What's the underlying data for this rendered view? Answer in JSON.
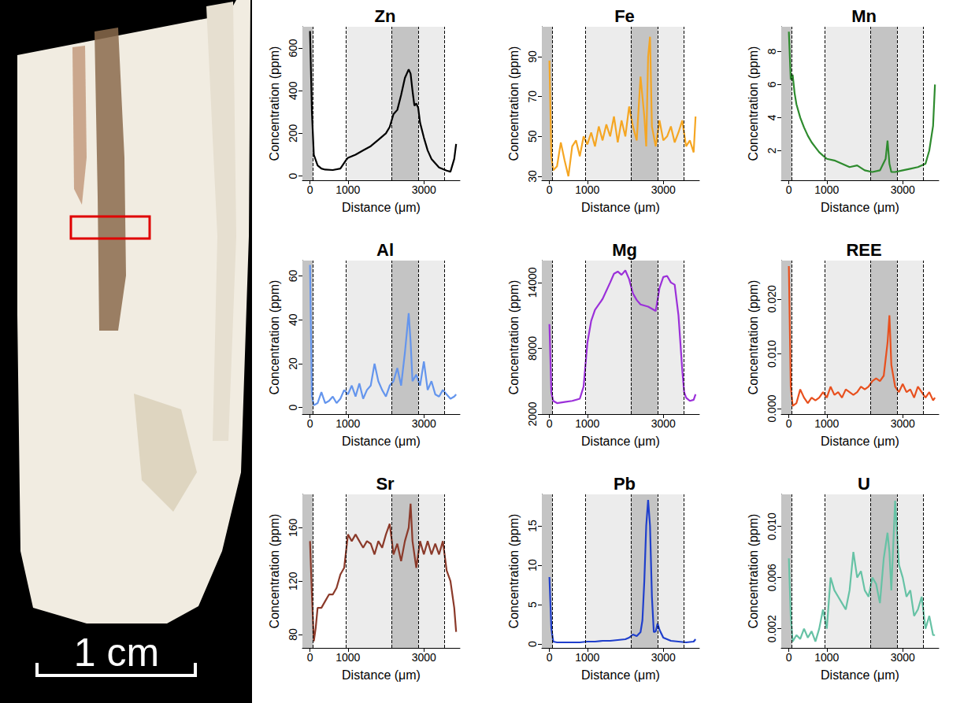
{
  "image": {
    "scale_label": "1 cm"
  },
  "chart_data": [
    {
      "type": "line",
      "title": "Zn",
      "color": "#000000",
      "x_label": "Distance (μm)",
      "y_label": "Concentration (ppm)",
      "grid": false,
      "xlim": [
        -200,
        3950
      ],
      "xticks": [
        0,
        1000,
        3000
      ],
      "ylim": [
        -20,
        700
      ],
      "yticks": [
        0,
        200,
        400,
        600
      ],
      "dark_bands": [
        [
          -200,
          80
        ],
        [
          2150,
          2850
        ]
      ],
      "light_bands": [
        [
          950,
          3550
        ]
      ],
      "dashed_lines": [
        80,
        950,
        2150,
        2850,
        3550
      ],
      "x": [
        0,
        50,
        100,
        200,
        300,
        400,
        600,
        800,
        950,
        1000,
        1200,
        1400,
        1600,
        1800,
        2000,
        2100,
        2200,
        2300,
        2400,
        2500,
        2600,
        2650,
        2700,
        2750,
        2800,
        2850,
        2900,
        3000,
        3100,
        3200,
        3400,
        3600,
        3700,
        3800,
        3850
      ],
      "values": [
        680,
        300,
        100,
        50,
        35,
        30,
        28,
        35,
        75,
        85,
        100,
        120,
        140,
        170,
        200,
        230,
        290,
        310,
        380,
        460,
        500,
        480,
        400,
        330,
        340,
        320,
        250,
        180,
        120,
        80,
        40,
        25,
        20,
        80,
        150
      ]
    },
    {
      "type": "line",
      "title": "Fe",
      "color": "#f5a623",
      "x_label": "Distance (μm)",
      "y_label": "Concentration (ppm)",
      "grid": false,
      "xlim": [
        -200,
        3950
      ],
      "xticks": [
        0,
        1000,
        3000
      ],
      "ylim": [
        28,
        105
      ],
      "yticks": [
        30,
        50,
        70,
        90
      ],
      "dark_bands": [
        [
          -200,
          80
        ],
        [
          2150,
          2850
        ]
      ],
      "light_bands": [
        [
          950,
          3550
        ]
      ],
      "dashed_lines": [
        80,
        950,
        2150,
        2850,
        3550
      ],
      "x": [
        0,
        50,
        100,
        200,
        300,
        400,
        500,
        600,
        700,
        800,
        900,
        1000,
        1100,
        1200,
        1300,
        1400,
        1500,
        1600,
        1700,
        1800,
        1900,
        2000,
        2100,
        2200,
        2300,
        2400,
        2500,
        2550,
        2600,
        2650,
        2700,
        2800,
        2900,
        3000,
        3100,
        3200,
        3300,
        3400,
        3500,
        3600,
        3700,
        3800,
        3850
      ],
      "values": [
        88,
        40,
        33,
        35,
        47,
        38,
        30,
        45,
        48,
        40,
        50,
        46,
        52,
        45,
        55,
        48,
        56,
        50,
        60,
        47,
        58,
        50,
        65,
        55,
        48,
        80,
        60,
        45,
        90,
        100,
        55,
        45,
        58,
        48,
        50,
        55,
        47,
        52,
        58,
        45,
        48,
        42,
        60
      ]
    },
    {
      "type": "line",
      "title": "Mn",
      "color": "#2e8b2e",
      "x_label": "Distance (μm)",
      "y_label": "Concentration (ppm)",
      "grid": false,
      "xlim": [
        -200,
        3950
      ],
      "xticks": [
        0,
        1000,
        3000
      ],
      "ylim": [
        0.2,
        9.5
      ],
      "yticks": [
        2,
        4,
        6,
        8
      ],
      "dark_bands": [
        [
          -200,
          80
        ],
        [
          2150,
          2850
        ]
      ],
      "light_bands": [
        [
          950,
          3550
        ]
      ],
      "dashed_lines": [
        80,
        950,
        2150,
        2850,
        3550
      ],
      "x": [
        0,
        50,
        100,
        150,
        200,
        300,
        400,
        500,
        600,
        700,
        800,
        900,
        1000,
        1200,
        1400,
        1600,
        1800,
        2000,
        2200,
        2400,
        2550,
        2600,
        2650,
        2700,
        2800,
        3000,
        3200,
        3400,
        3600,
        3700,
        3800,
        3850
      ],
      "values": [
        9.2,
        6.3,
        6.6,
        5.5,
        4.8,
        4.0,
        3.4,
        2.9,
        2.5,
        2.2,
        1.9,
        1.7,
        1.5,
        1.4,
        1.2,
        1.0,
        1.1,
        0.8,
        0.7,
        0.8,
        1.5,
        2.6,
        1.2,
        0.7,
        0.7,
        0.8,
        0.9,
        1.0,
        1.2,
        2.0,
        3.5,
        6.0
      ]
    },
    {
      "type": "line",
      "title": "Al",
      "color": "#6495ed",
      "x_label": "Distance (μm)",
      "y_label": "Concentration (ppm)",
      "grid": false,
      "xlim": [
        -200,
        3950
      ],
      "xticks": [
        0,
        1000,
        3000
      ],
      "ylim": [
        -3,
        67
      ],
      "yticks": [
        0,
        20,
        40,
        60
      ],
      "dark_bands": [
        [
          -200,
          80
        ],
        [
          2150,
          2850
        ]
      ],
      "light_bands": [
        [
          950,
          3550
        ]
      ],
      "dashed_lines": [
        80,
        950,
        2150,
        2850,
        3550
      ],
      "x": [
        0,
        50,
        100,
        200,
        300,
        400,
        500,
        600,
        700,
        800,
        900,
        1000,
        1100,
        1200,
        1300,
        1400,
        1500,
        1600,
        1700,
        1800,
        1900,
        2000,
        2100,
        2200,
        2300,
        2400,
        2500,
        2600,
        2650,
        2700,
        2800,
        2900,
        3000,
        3100,
        3200,
        3300,
        3400,
        3500,
        3600,
        3700,
        3800,
        3850
      ],
      "values": [
        65,
        5,
        1,
        2,
        7,
        2,
        3,
        5,
        2,
        4,
        8,
        6,
        10,
        5,
        11,
        4,
        8,
        10,
        20,
        12,
        8,
        5,
        10,
        12,
        18,
        10,
        25,
        43,
        30,
        12,
        15,
        10,
        21,
        8,
        12,
        6,
        5,
        8,
        6,
        4,
        5,
        6
      ]
    },
    {
      "type": "line",
      "title": "Mg",
      "color": "#9b30d9",
      "x_label": "Distance (μm)",
      "y_label": "Concentration (ppm)",
      "grid": false,
      "xlim": [
        -200,
        3950
      ],
      "xticks": [
        0,
        1000,
        3000
      ],
      "ylim": [
        2000,
        16000
      ],
      "yticks": [
        2000,
        8000,
        14000
      ],
      "dark_bands": [
        [
          -200,
          80
        ],
        [
          2150,
          2850
        ]
      ],
      "light_bands": [
        [
          950,
          3550
        ]
      ],
      "dashed_lines": [
        80,
        950,
        2150,
        2850,
        3550
      ],
      "x": [
        0,
        50,
        100,
        200,
        400,
        600,
        800,
        900,
        1000,
        1100,
        1200,
        1400,
        1600,
        1700,
        1800,
        1900,
        2000,
        2100,
        2200,
        2300,
        2400,
        2600,
        2800,
        2900,
        3000,
        3100,
        3200,
        3300,
        3400,
        3500,
        3550,
        3600,
        3700,
        3800,
        3850
      ],
      "values": [
        10200,
        4000,
        3200,
        3000,
        3100,
        3200,
        3400,
        4500,
        8500,
        10500,
        11500,
        12500,
        14000,
        14800,
        15000,
        14700,
        15100,
        14300,
        13000,
        12400,
        12000,
        11800,
        11400,
        13500,
        14500,
        14600,
        14000,
        13800,
        11000,
        6000,
        4000,
        3500,
        3200,
        3300,
        3800
      ]
    },
    {
      "type": "line",
      "title": "REE",
      "color": "#e8501e",
      "x_label": "Distance (μm)",
      "y_label": "Concentration (ppm)",
      "grid": false,
      "xlim": [
        -200,
        3950
      ],
      "xticks": [
        0,
        1000,
        3000
      ],
      "ylim": [
        -0.001,
        0.027
      ],
      "yticks": [
        {
          "value": 0,
          "label": "0.000"
        },
        {
          "value": 0.01,
          "label": "0.010"
        },
        {
          "value": 0.02,
          "label": "0.020"
        }
      ],
      "dark_bands": [
        [
          -200,
          80
        ],
        [
          2150,
          2850
        ]
      ],
      "light_bands": [
        [
          950,
          3550
        ]
      ],
      "dashed_lines": [
        80,
        950,
        2150,
        2850,
        3550
      ],
      "x": [
        0,
        50,
        100,
        200,
        300,
        400,
        500,
        600,
        700,
        800,
        900,
        1000,
        1100,
        1200,
        1300,
        1400,
        1500,
        1600,
        1700,
        1800,
        1900,
        2000,
        2100,
        2200,
        2300,
        2400,
        2500,
        2600,
        2650,
        2700,
        2800,
        2900,
        3000,
        3100,
        3200,
        3300,
        3400,
        3500,
        3600,
        3700,
        3800,
        3850
      ],
      "values": [
        0.026,
        0.004,
        0.0005,
        0.001,
        0.0035,
        0.002,
        0.001,
        0.002,
        0.0015,
        0.002,
        0.003,
        0.002,
        0.004,
        0.0025,
        0.003,
        0.002,
        0.0035,
        0.003,
        0.0025,
        0.003,
        0.004,
        0.0035,
        0.004,
        0.005,
        0.0055,
        0.005,
        0.006,
        0.012,
        0.017,
        0.008,
        0.004,
        0.003,
        0.0045,
        0.003,
        0.0035,
        0.002,
        0.004,
        0.003,
        0.002,
        0.003,
        0.0015,
        0.002
      ]
    },
    {
      "type": "line",
      "title": "Sr",
      "color": "#8b3a2a",
      "x_label": "Distance (μm)",
      "y_label": "Concentration (ppm)",
      "grid": false,
      "xlim": [
        -200,
        3950
      ],
      "xticks": [
        0,
        1000,
        3000
      ],
      "ylim": [
        70,
        185
      ],
      "yticks": [
        80,
        120,
        160
      ],
      "dark_bands": [
        [
          -200,
          80
        ],
        [
          2150,
          2850
        ]
      ],
      "light_bands": [
        [
          950,
          3550
        ]
      ],
      "dashed_lines": [
        80,
        950,
        2150,
        2850,
        3550
      ],
      "x": [
        0,
        50,
        100,
        150,
        200,
        300,
        400,
        500,
        600,
        700,
        800,
        900,
        1000,
        1100,
        1200,
        1300,
        1400,
        1500,
        1600,
        1700,
        1800,
        1900,
        2000,
        2100,
        2200,
        2300,
        2400,
        2500,
        2600,
        2650,
        2700,
        2800,
        2900,
        3000,
        3100,
        3200,
        3300,
        3400,
        3500,
        3600,
        3700,
        3800,
        3850
      ],
      "values": [
        150,
        110,
        75,
        85,
        100,
        100,
        105,
        110,
        110,
        115,
        125,
        130,
        155,
        150,
        155,
        150,
        145,
        150,
        148,
        140,
        150,
        145,
        155,
        163,
        140,
        148,
        135,
        150,
        160,
        178,
        150,
        130,
        150,
        140,
        150,
        140,
        148,
        140,
        150,
        128,
        120,
        100,
        82
      ]
    },
    {
      "type": "line",
      "title": "Pb",
      "color": "#1f3fcc",
      "x_label": "Distance (μm)",
      "y_label": "Concentration (ppm)",
      "grid": false,
      "xlim": [
        -200,
        3950
      ],
      "xticks": [
        0,
        1000,
        3000
      ],
      "ylim": [
        -0.5,
        19
      ],
      "yticks": [
        0,
        5,
        10,
        15
      ],
      "dark_bands": [
        [
          -200,
          80
        ],
        [
          2150,
          2850
        ]
      ],
      "light_bands": [
        [
          950,
          3550
        ]
      ],
      "dashed_lines": [
        80,
        950,
        2150,
        2850,
        3550
      ],
      "x": [
        0,
        50,
        100,
        200,
        400,
        600,
        800,
        1000,
        1200,
        1400,
        1600,
        1800,
        2000,
        2100,
        2200,
        2300,
        2400,
        2450,
        2500,
        2550,
        2600,
        2650,
        2700,
        2750,
        2800,
        2850,
        2900,
        3000,
        3200,
        3400,
        3600,
        3800,
        3850
      ],
      "values": [
        8.5,
        2,
        0.3,
        0.2,
        0.2,
        0.2,
        0.2,
        0.3,
        0.3,
        0.4,
        0.4,
        0.5,
        0.6,
        0.8,
        1.2,
        1.0,
        1.5,
        3,
        8,
        15,
        18.3,
        15,
        6,
        1.5,
        1.6,
        2.6,
        1.8,
        0.8,
        0.4,
        0.3,
        0.2,
        0.3,
        0.6
      ]
    },
    {
      "type": "line",
      "title": "U",
      "color": "#66c2a5",
      "x_label": "Distance (μm)",
      "y_label": "Concentration (ppm)",
      "grid": false,
      "xlim": [
        -200,
        3950
      ],
      "xticks": [
        0,
        1000,
        3000
      ],
      "ylim": [
        0.0005,
        0.0125
      ],
      "yticks": [
        0.002,
        0.006,
        {
          "value": 0.01,
          "label": "0.010"
        }
      ],
      "dark_bands": [
        [
          -200,
          80
        ],
        [
          2150,
          2850
        ]
      ],
      "light_bands": [
        [
          950,
          3550
        ]
      ],
      "dashed_lines": [
        80,
        950,
        2150,
        2850,
        3550
      ],
      "x": [
        0,
        50,
        100,
        200,
        300,
        400,
        500,
        600,
        700,
        800,
        900,
        1000,
        1100,
        1200,
        1300,
        1400,
        1500,
        1600,
        1700,
        1800,
        1900,
        2000,
        2100,
        2200,
        2300,
        2400,
        2500,
        2600,
        2650,
        2700,
        2800,
        2900,
        3000,
        3100,
        3200,
        3300,
        3400,
        3500,
        3600,
        3700,
        3800,
        3850
      ],
      "values": [
        0.0075,
        0.003,
        0.001,
        0.0015,
        0.0012,
        0.002,
        0.0013,
        0.0018,
        0.001,
        0.002,
        0.0035,
        0.002,
        0.006,
        0.005,
        0.0045,
        0.004,
        0.0035,
        0.005,
        0.008,
        0.006,
        0.0065,
        0.005,
        0.0045,
        0.006,
        0.0055,
        0.004,
        0.0075,
        0.0095,
        0.008,
        0.005,
        0.012,
        0.007,
        0.006,
        0.0045,
        0.005,
        0.003,
        0.0035,
        0.0045,
        0.002,
        0.003,
        0.0015,
        0.0015
      ]
    }
  ]
}
